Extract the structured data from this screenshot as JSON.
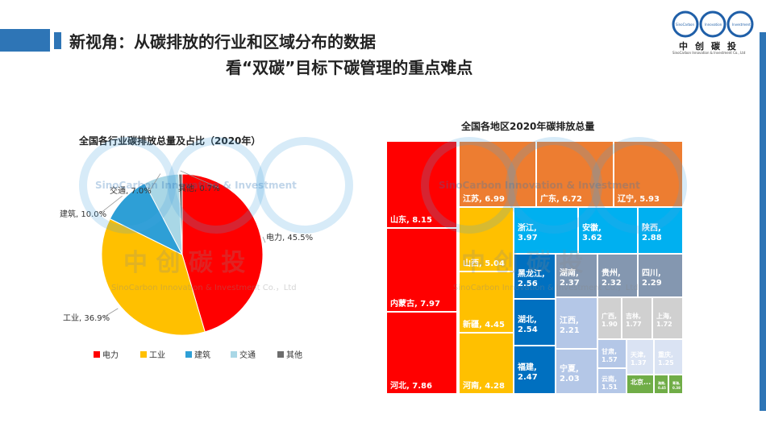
{
  "page": {
    "title_line1": "新视角：从碳排放的行业和区域分布的数据",
    "title_line2": "看“双碳”目标下碳管理的重点难点"
  },
  "logo": {
    "name_cn": "中创碳投",
    "name_en": "SinoCarbon Innovation & Investment Co., Ltd",
    "ring_labels": [
      "SinoCarbon",
      "Innovation",
      "Investment"
    ]
  },
  "watermark": {
    "text_en": "SinoCarbon Innovation & Investment",
    "text_cn": "中 创 碳 投",
    "text_full": "SinoCarbon Innovation & Investment Co.，Ltd"
  },
  "colors": {
    "accent": "#2e75b6",
    "pie": [
      "#ff0000",
      "#ffc000",
      "#2e9fd6",
      "#a9d7e6",
      "#6d6d6d"
    ]
  },
  "chart_data": [
    {
      "type": "pie",
      "title": "全国各行业碳排放总量及占比（2020年）",
      "unit": "%",
      "labels": [
        "电力",
        "工业",
        "建筑",
        "交通",
        "其他"
      ],
      "values": [
        45.5,
        36.9,
        10.0,
        7.0,
        0.7
      ],
      "data_labels": [
        "电力, 45.5%",
        "工业, 36.9%",
        "建筑, 10.0%",
        "交通, 7.0%",
        "其他, 0.7%"
      ],
      "legend": {
        "position": "bottom",
        "entries": [
          "电力",
          "工业",
          "建筑",
          "交通",
          "其他"
        ]
      }
    },
    {
      "type": "treemap",
      "title": "全国各地区2020年碳排放总量",
      "items": [
        {
          "name": "山东",
          "value": 8.15,
          "label": "山东, 8.15",
          "color": "#ff0000"
        },
        {
          "name": "内蒙古",
          "value": 7.97,
          "label": "内蒙古, 7.97",
          "color": "#ff0000"
        },
        {
          "name": "河北",
          "value": 7.86,
          "label": "河北, 7.86",
          "color": "#ff0000"
        },
        {
          "name": "江苏",
          "value": 6.99,
          "label": "江苏, 6.99",
          "color": "#ed7d31"
        },
        {
          "name": "广东",
          "value": 6.72,
          "label": "广东, 6.72",
          "color": "#ed7d31"
        },
        {
          "name": "辽宁",
          "value": 5.93,
          "label": "辽宁, 5.93",
          "color": "#ed7d31"
        },
        {
          "name": "山西",
          "value": 5.04,
          "label": "山西, 5.04",
          "color": "#ffc000"
        },
        {
          "name": "新疆",
          "value": 4.45,
          "label": "新疆, 4.45",
          "color": "#ffc000"
        },
        {
          "name": "河南",
          "value": 4.28,
          "label": "河南, 4.28",
          "color": "#ffc000"
        },
        {
          "name": "浙江",
          "value": 3.97,
          "label": "浙江, 3.97",
          "color": "#00b0f0"
        },
        {
          "name": "安徽",
          "value": 3.62,
          "label": "安徽, 3.62",
          "color": "#00b0f0"
        },
        {
          "name": "陕西",
          "value": 2.88,
          "label": "陕西, 2.88",
          "color": "#00b0f0"
        },
        {
          "name": "黑龙江",
          "value": 2.56,
          "label": "黑龙江, 2.56",
          "color": "#0070c0"
        },
        {
          "name": "湖北",
          "value": 2.54,
          "label": "湖北, 2.54",
          "color": "#0070c0"
        },
        {
          "name": "福建",
          "value": 2.47,
          "label": "福建, 2.47",
          "color": "#0070c0"
        },
        {
          "name": "湖南",
          "value": 2.37,
          "label": "湖南, 2.37",
          "color": "#8497b0"
        },
        {
          "name": "贵州",
          "value": 2.32,
          "label": "贵州, 2.32",
          "color": "#8497b0"
        },
        {
          "name": "四川",
          "value": 2.29,
          "label": "四川, 2.29",
          "color": "#8497b0"
        },
        {
          "name": "江西",
          "value": 2.21,
          "label": "江西, 2.21",
          "color": "#b4c7e7"
        },
        {
          "name": "宁夏",
          "value": 2.03,
          "label": "宁夏, 2.03",
          "color": "#b4c7e7"
        },
        {
          "name": "广西",
          "value": 1.9,
          "label": "广西, 1.90",
          "color": "#d0d0d0"
        },
        {
          "name": "吉林",
          "value": 1.77,
          "label": "吉林, 1.77",
          "color": "#d0d0d0"
        },
        {
          "name": "上海",
          "value": 1.72,
          "label": "上海, 1.72",
          "color": "#d0d0d0"
        },
        {
          "name": "甘肃",
          "value": 1.57,
          "label": "甘肃, 1.57",
          "color": "#b4c7e7"
        },
        {
          "name": "云南",
          "value": 1.51,
          "label": "云南, 1.51",
          "color": "#b4c7e7"
        },
        {
          "name": "天津",
          "value": 1.37,
          "label": "天津, 1.37",
          "color": "#dae3f3"
        },
        {
          "name": "重庆",
          "value": 1.25,
          "label": "重庆, 1.25",
          "color": "#dae3f3"
        },
        {
          "name": "北京",
          "value": null,
          "label": "北京...",
          "color": "#70ad47"
        },
        {
          "name": "海南",
          "value": 0.45,
          "label": "海南, 0.45",
          "color": "#70ad47"
        },
        {
          "name": "青海",
          "value": 0.38,
          "label": "青海, 0.38",
          "color": "#70ad47"
        }
      ]
    }
  ]
}
